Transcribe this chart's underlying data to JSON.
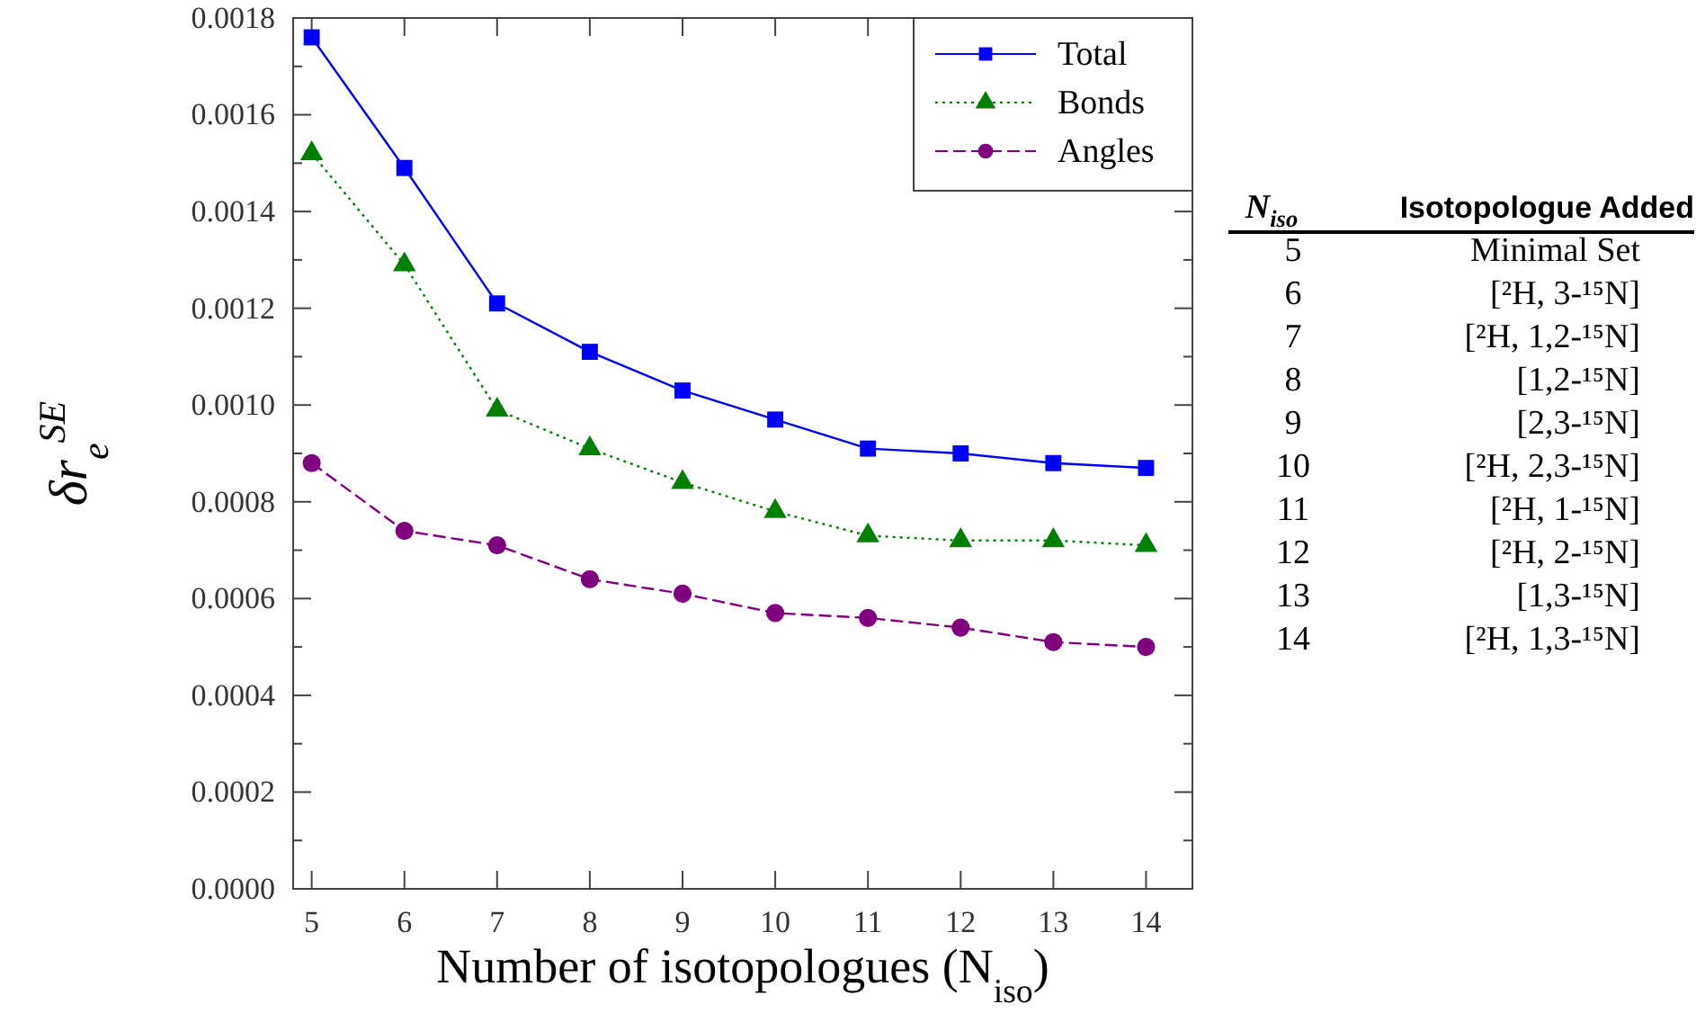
{
  "chart_data": {
    "type": "line",
    "xlabel": "Number of isotopologues (N$_{iso}$)",
    "ylabel": "δr$_{e}$$^{SE}$",
    "x": [
      5,
      6,
      7,
      8,
      9,
      10,
      11,
      12,
      13,
      14
    ],
    "xlim": [
      4.8,
      14.5
    ],
    "xticks": [
      5,
      6,
      7,
      8,
      9,
      10,
      11,
      12,
      13,
      14
    ],
    "ylim": [
      0,
      0.0018
    ],
    "yticks": [
      {
        "value": 0,
        "label": "0.0000"
      },
      {
        "value": 0.0002,
        "label": "0.0002"
      },
      {
        "value": 0.0004,
        "label": "0.0004"
      },
      {
        "value": 0.0006,
        "label": "0.0006"
      },
      {
        "value": 0.0008,
        "label": "0.0008"
      },
      {
        "value": 0.001,
        "label": "0.0010"
      },
      {
        "value": 0.0012,
        "label": "0.0012"
      },
      {
        "value": 0.0014,
        "label": "0.0014"
      },
      {
        "value": 0.0016,
        "label": "0.0016"
      },
      {
        "value": 0.0018,
        "label": "0.0018"
      }
    ],
    "legend": "top right",
    "grid": false,
    "series": [
      {
        "name": "Total",
        "color": "#0000ff",
        "marker": "square",
        "line_style": "solid",
        "values": [
          0.00176,
          0.00149,
          0.00121,
          0.00111,
          0.00103,
          0.00097,
          0.00091,
          0.0009,
          0.00088,
          0.00087
        ]
      },
      {
        "name": "Bonds",
        "color": "#008000",
        "marker": "triangle",
        "line_style": "dotted",
        "values": [
          0.00152,
          0.00129,
          0.00099,
          0.00091,
          0.00084,
          0.00078,
          0.00073,
          0.00072,
          0.00072,
          0.00071
        ]
      },
      {
        "name": "Angles",
        "color": "#800080",
        "marker": "circle",
        "line_style": "dashed",
        "values": [
          0.00088,
          0.00074,
          0.00071,
          0.00064,
          0.00061,
          0.00057,
          0.00056,
          0.00054,
          0.00051,
          0.0005
        ]
      }
    ],
    "annotations": [
      "N$_{iso}$",
      "Isotopologue Added",
      "5",
      "Minimal Set",
      "6",
      "[²H, 3-¹⁵N]",
      "7",
      "[²H, 1,2-¹⁵N]",
      "8",
      "[1,2-¹⁵N]",
      "9",
      "[2,3-¹⁵N]",
      "10",
      "[²H, 2,3-¹⁵N]",
      "11",
      "[²H, 1-¹⁵N]",
      "12",
      "[²H, 2-¹⁵N]",
      "13",
      "[1,3-¹⁵N]",
      "14",
      "[²H, 1,3-¹⁵N]"
    ]
  }
}
